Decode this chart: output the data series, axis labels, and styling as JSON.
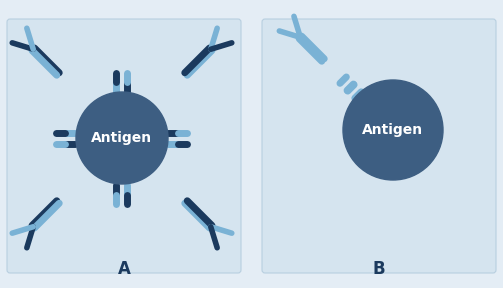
{
  "bg_color": "#e4edf5",
  "panel_bg": "#d5e4ef",
  "antigen_color": "#3d5e82",
  "antibody_light": "#7ab2d5",
  "antibody_dark": "#1b3a5e",
  "text_white": "#ffffff",
  "text_dark": "#1b3a5e",
  "label_A": "A",
  "label_B": "B",
  "antigen_label": "Antigen",
  "font_antigen": 10,
  "font_label": 12
}
